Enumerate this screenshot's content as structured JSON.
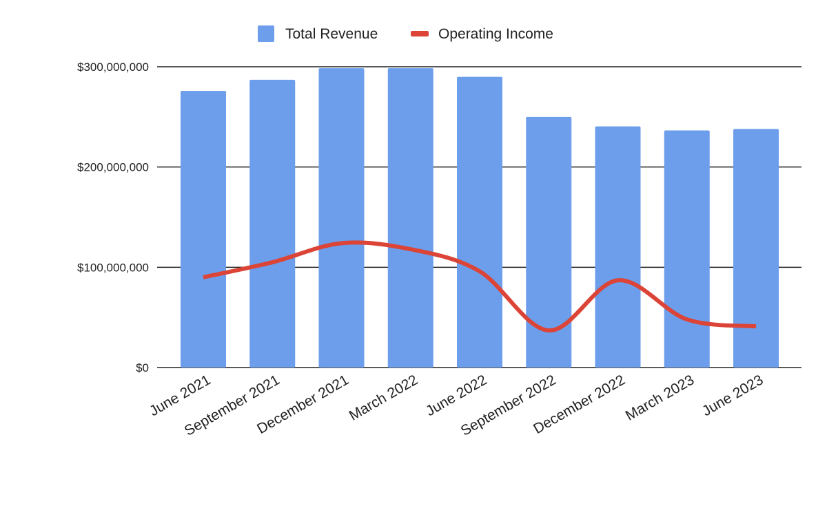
{
  "chart_data": {
    "type": "bar",
    "categories": [
      "June 2021",
      "September 2021",
      "December 2021",
      "March 2022",
      "June 2022",
      "September 2022",
      "December 2022",
      "March 2023",
      "June 2023"
    ],
    "series": [
      {
        "name": "Total Revenue",
        "type": "bar",
        "color": "#6d9eeb",
        "values": [
          276000000,
          287000000,
          298500000,
          298500000,
          290000000,
          250000000,
          240500000,
          236500000,
          238000000
        ]
      },
      {
        "name": "Operating Income",
        "type": "line",
        "smooth": true,
        "color": "#db4437",
        "values": [
          90000000,
          105000000,
          124000000,
          118000000,
          96000000,
          37000000,
          87000000,
          48000000,
          41000000
        ]
      }
    ],
    "y_ticks": [
      "$0",
      "$100,000,000",
      "$200,000,000",
      "$300,000,000"
    ],
    "ylim": [
      0,
      300000000
    ],
    "grid": true,
    "legend": "top-center"
  }
}
